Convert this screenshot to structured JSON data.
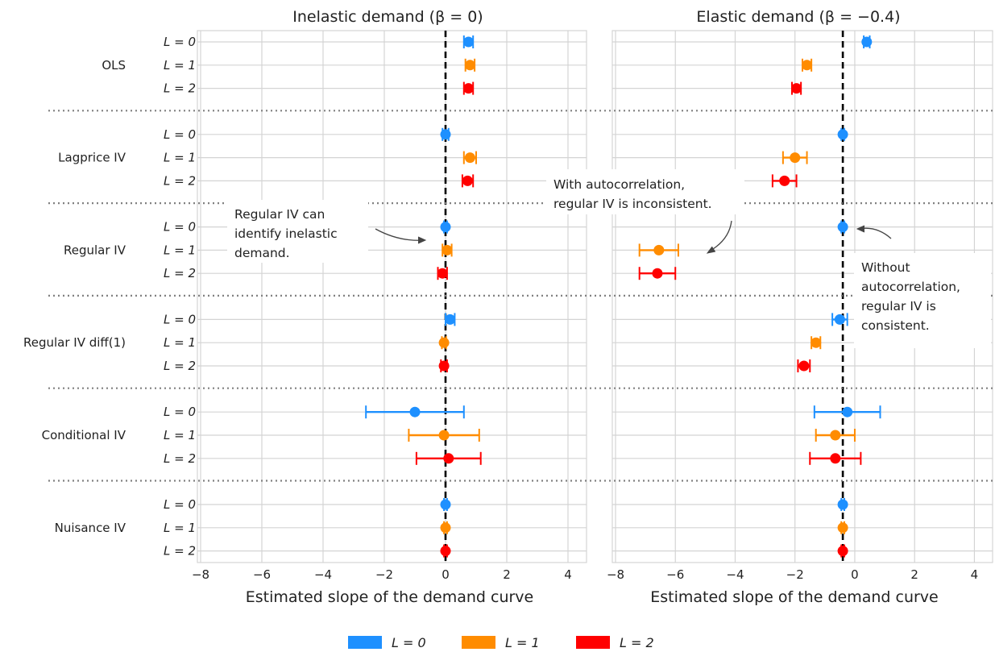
{
  "colors": {
    "L0": "#1e90ff",
    "L1": "#ff8c00",
    "L2": "#ff0000",
    "grid": "#d4d4d4",
    "separator": "#808080"
  },
  "chart_data": {
    "type": "scatter",
    "subtype": "forest-plot-with-error-bars",
    "xlabel": "Estimated slope of the demand curve",
    "xlim": [
      -8,
      4.5
    ],
    "xticks": [
      -8,
      -6,
      -4,
      -2,
      0,
      2,
      4
    ],
    "xtick_labels": [
      "−8",
      "−6",
      "−4",
      "−2",
      "0",
      "2",
      "4"
    ],
    "grid": true,
    "legend_position": "bottom-center",
    "series": [
      {
        "key": "L0",
        "name": "L = 0",
        "color": "#1e90ff"
      },
      {
        "key": "L1",
        "name": "L = 1",
        "color": "#ff8c00"
      },
      {
        "key": "L2",
        "name": "L = 2",
        "color": "#ff0000"
      }
    ],
    "row_labels": [
      "L = 0",
      "L = 1",
      "L = 2"
    ],
    "groups": [
      "OLS",
      "Lagprice IV",
      "Regular IV",
      "Regular IV diff(1)",
      "Conditional IV",
      "Nuisance IV"
    ],
    "panels": [
      {
        "title": "Inelastic demand (β = 0)",
        "true_value": 0,
        "points": [
          [
            {
              "est": 0.75,
              "lo": 0.6,
              "hi": 0.9
            },
            {
              "est": 0.8,
              "lo": 0.65,
              "hi": 0.95
            },
            {
              "est": 0.75,
              "lo": 0.6,
              "hi": 0.9
            }
          ],
          [
            {
              "est": 0.0,
              "lo": -0.1,
              "hi": 0.1
            },
            {
              "est": 0.8,
              "lo": 0.6,
              "hi": 1.0
            },
            {
              "est": 0.72,
              "lo": 0.55,
              "hi": 0.9
            }
          ],
          [
            {
              "est": 0.0,
              "lo": -0.05,
              "hi": 0.05
            },
            {
              "est": 0.05,
              "lo": -0.1,
              "hi": 0.2
            },
            {
              "est": -0.1,
              "lo": -0.25,
              "hi": 0.05
            }
          ],
          [
            {
              "est": 0.15,
              "lo": 0.0,
              "hi": 0.3
            },
            {
              "est": -0.05,
              "lo": -0.12,
              "hi": 0.02
            },
            {
              "est": -0.05,
              "lo": -0.15,
              "hi": 0.05
            }
          ],
          [
            {
              "est": -1.0,
              "lo": -2.6,
              "hi": 0.6
            },
            {
              "est": -0.05,
              "lo": -1.2,
              "hi": 1.1
            },
            {
              "est": 0.1,
              "lo": -0.95,
              "hi": 1.15
            }
          ],
          [
            {
              "est": 0.0,
              "lo": -0.05,
              "hi": 0.05
            },
            {
              "est": 0.0,
              "lo": -0.05,
              "hi": 0.05
            },
            {
              "est": 0.0,
              "lo": -0.05,
              "hi": 0.05
            }
          ]
        ]
      },
      {
        "title": "Elastic demand (β = −0.4)",
        "true_value": -0.4,
        "points": [
          [
            {
              "est": 0.4,
              "lo": 0.3,
              "hi": 0.5
            },
            {
              "est": -1.6,
              "lo": -1.75,
              "hi": -1.45
            },
            {
              "est": -1.95,
              "lo": -2.1,
              "hi": -1.8
            }
          ],
          [
            {
              "est": -0.4,
              "lo": -0.45,
              "hi": -0.35
            },
            {
              "est": -2.0,
              "lo": -2.4,
              "hi": -1.6
            },
            {
              "est": -2.35,
              "lo": -2.75,
              "hi": -1.95
            }
          ],
          [
            {
              "est": -0.4,
              "lo": -0.45,
              "hi": -0.35
            },
            {
              "est": -6.55,
              "lo": -7.2,
              "hi": -5.9
            },
            {
              "est": -6.6,
              "lo": -7.2,
              "hi": -6.0
            }
          ],
          [
            {
              "est": -0.5,
              "lo": -0.75,
              "hi": -0.25
            },
            {
              "est": -1.3,
              "lo": -1.45,
              "hi": -1.15
            },
            {
              "est": -1.7,
              "lo": -1.9,
              "hi": -1.5
            }
          ],
          [
            {
              "est": -0.25,
              "lo": -1.35,
              "hi": 0.85
            },
            {
              "est": -0.65,
              "lo": -1.3,
              "hi": 0.0
            },
            {
              "est": -0.65,
              "lo": -1.5,
              "hi": 0.2
            }
          ],
          [
            {
              "est": -0.4,
              "lo": -0.45,
              "hi": -0.35
            },
            {
              "est": -0.4,
              "lo": -0.45,
              "hi": -0.35
            },
            {
              "est": -0.4,
              "lo": -0.45,
              "hi": -0.35
            }
          ]
        ]
      }
    ]
  },
  "annotations": {
    "regular_iv_inelastic": [
      "Regular IV can",
      "identify inelastic",
      "demand."
    ],
    "autocorr_inconsistent": [
      "With autocorrelation,",
      "regular IV is inconsistent."
    ],
    "no_autocorr_consistent": [
      "Without",
      "autocorrelation,",
      "regular IV is",
      "consistent."
    ]
  }
}
